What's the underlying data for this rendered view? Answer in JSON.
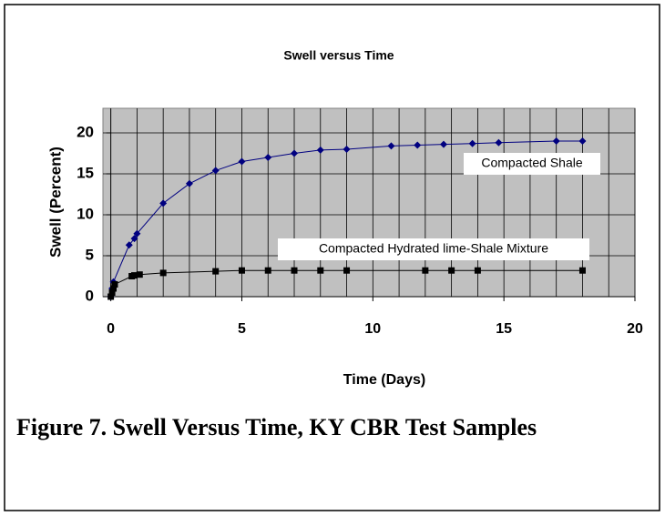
{
  "chart_data": {
    "type": "line",
    "title": "Swell versus Time",
    "x_label": "Time (Days)",
    "y_label": "Swell (Percent)",
    "caption": "Figure 7.  Swell Versus Time, KY CBR Test Samples",
    "xlim": [
      -0.3,
      20
    ],
    "ylim": [
      0,
      23
    ],
    "xticks": [
      0,
      5,
      10,
      15,
      20
    ],
    "yticks": [
      0,
      5,
      10,
      15,
      20
    ],
    "xgrid": [
      1,
      2,
      3,
      4,
      5,
      6,
      7,
      8,
      9,
      10,
      11,
      12,
      13,
      14,
      15,
      16,
      17,
      18,
      19,
      20
    ],
    "grid": true,
    "series": [
      {
        "name": "Compacted Shale",
        "color": "#000080",
        "marker": "diamond",
        "x": [
          0,
          0.05,
          0.1,
          0.7,
          0.9,
          1,
          2,
          3,
          4,
          5,
          6,
          7,
          8,
          9,
          10.7,
          11.7,
          12.7,
          13.8,
          14.8,
          17,
          18
        ],
        "values": [
          0,
          1,
          1.8,
          6.3,
          7.1,
          7.7,
          11.4,
          13.8,
          15.4,
          16.5,
          17,
          17.5,
          17.9,
          18,
          18.4,
          18.5,
          18.6,
          18.7,
          18.8,
          19,
          19
        ]
      },
      {
        "name": "Compacted Hydrated lime-Shale Mixture",
        "color": "#000000",
        "marker": "square",
        "x": [
          0,
          0.05,
          0.1,
          0.15,
          0.8,
          0.9,
          1.1,
          2,
          4,
          5,
          6,
          7,
          8,
          9,
          12,
          13,
          14,
          18
        ],
        "values": [
          0,
          0.5,
          1,
          1.5,
          2.5,
          2.6,
          2.7,
          2.9,
          3.1,
          3.2,
          3.2,
          3.2,
          3.2,
          3.2,
          3.2,
          3.2,
          3.2,
          3.2
        ]
      }
    ]
  }
}
